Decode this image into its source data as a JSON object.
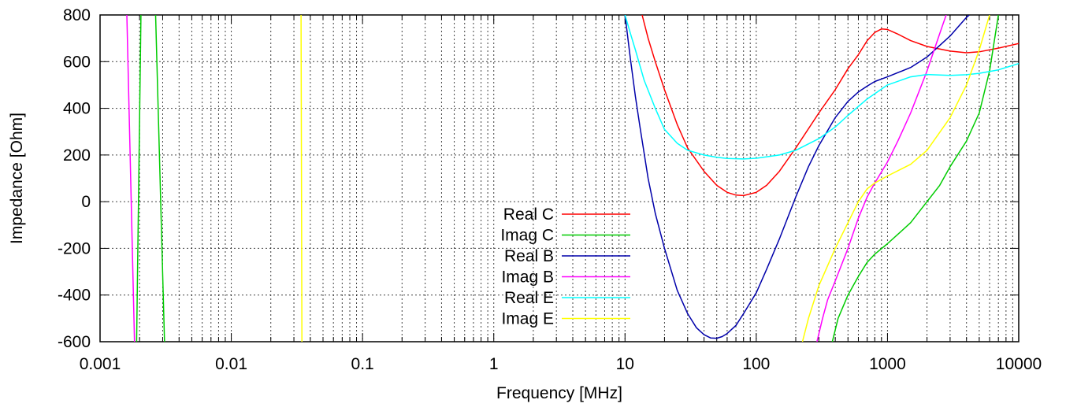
{
  "chart_data": {
    "type": "line",
    "xlabel": "Frequency [MHz]",
    "ylabel": "Impedance [Ohm]",
    "xscale": "log",
    "xlim": [
      0.001,
      10000
    ],
    "ylim": [
      -600,
      800
    ],
    "grid": true,
    "legend_position": "center",
    "x_ticks": [
      {
        "value": 0.001,
        "label": "0.001"
      },
      {
        "value": 0.01,
        "label": "0.01"
      },
      {
        "value": 0.1,
        "label": "0.1"
      },
      {
        "value": 1,
        "label": "1"
      },
      {
        "value": 10,
        "label": "10"
      },
      {
        "value": 100,
        "label": "100"
      },
      {
        "value": 1000,
        "label": "1000"
      },
      {
        "value": 10000,
        "label": "10000"
      }
    ],
    "y_ticks": [
      {
        "value": 800,
        "label": "800"
      },
      {
        "value": 600,
        "label": "600"
      },
      {
        "value": 400,
        "label": "400"
      },
      {
        "value": 200,
        "label": "200"
      },
      {
        "value": 0,
        "label": "0"
      },
      {
        "value": -200,
        "label": "-200"
      },
      {
        "value": -400,
        "label": "-400"
      },
      {
        "value": -600,
        "label": "-600"
      }
    ],
    "series": [
      {
        "name": "Real C",
        "color": "#ff0000",
        "points": [
          [
            13.5,
            800
          ],
          [
            15,
            700
          ],
          [
            17,
            600
          ],
          [
            20,
            480
          ],
          [
            25,
            330
          ],
          [
            30,
            230
          ],
          [
            40,
            130
          ],
          [
            50,
            70
          ],
          [
            60,
            40
          ],
          [
            70,
            28
          ],
          [
            80,
            26
          ],
          [
            100,
            40
          ],
          [
            120,
            70
          ],
          [
            150,
            130
          ],
          [
            200,
            230
          ],
          [
            300,
            380
          ],
          [
            400,
            480
          ],
          [
            500,
            570
          ],
          [
            600,
            630
          ],
          [
            700,
            690
          ],
          [
            800,
            725
          ],
          [
            900,
            740
          ],
          [
            1000,
            738
          ],
          [
            1200,
            718
          ],
          [
            1500,
            690
          ],
          [
            2000,
            665
          ],
          [
            3000,
            645
          ],
          [
            4000,
            638
          ],
          [
            5000,
            642
          ],
          [
            7000,
            658
          ],
          [
            10000,
            678
          ]
        ]
      },
      {
        "name": "Imag C",
        "color": "#00cc00",
        "points": [
          [
            0.0019,
            -600
          ],
          [
            0.00205,
            800
          ],
          [
            null,
            null
          ],
          [
            0.00265,
            800
          ],
          [
            0.0031,
            -600
          ],
          [
            null,
            null
          ],
          [
            380,
            -600
          ],
          [
            420,
            -500
          ],
          [
            500,
            -400
          ],
          [
            600,
            -320
          ],
          [
            700,
            -260
          ],
          [
            800,
            -225
          ],
          [
            1000,
            -180
          ],
          [
            1200,
            -140
          ],
          [
            1500,
            -90
          ],
          [
            2000,
            0
          ],
          [
            2500,
            70
          ],
          [
            3000,
            150
          ],
          [
            4000,
            260
          ],
          [
            5000,
            380
          ],
          [
            6000,
            560
          ],
          [
            7000,
            800
          ]
        ]
      },
      {
        "name": "Real B",
        "color": "#0000aa",
        "points": [
          [
            10,
            800
          ],
          [
            11,
            610
          ],
          [
            12,
            450
          ],
          [
            13,
            320
          ],
          [
            15,
            100
          ],
          [
            17,
            -50
          ],
          [
            20,
            -200
          ],
          [
            25,
            -380
          ],
          [
            30,
            -480
          ],
          [
            35,
            -540
          ],
          [
            40,
            -570
          ],
          [
            45,
            -584
          ],
          [
            50,
            -585
          ],
          [
            55,
            -578
          ],
          [
            60,
            -565
          ],
          [
            70,
            -530
          ],
          [
            80,
            -480
          ],
          [
            100,
            -390
          ],
          [
            120,
            -290
          ],
          [
            150,
            -160
          ],
          [
            200,
            20
          ],
          [
            250,
            150
          ],
          [
            300,
            240
          ],
          [
            400,
            360
          ],
          [
            500,
            430
          ],
          [
            600,
            470
          ],
          [
            700,
            495
          ],
          [
            800,
            515
          ],
          [
            1000,
            535
          ],
          [
            1500,
            575
          ],
          [
            2000,
            620
          ],
          [
            3000,
            710
          ],
          [
            4000,
            790
          ],
          [
            4200,
            800
          ]
        ]
      },
      {
        "name": "Imag B",
        "color": "#ff00ff",
        "points": [
          [
            0.0016,
            800
          ],
          [
            0.00183,
            -600
          ],
          [
            null,
            null
          ],
          [
            290,
            -600
          ],
          [
            320,
            -500
          ],
          [
            350,
            -420
          ],
          [
            400,
            -340
          ],
          [
            500,
            -200
          ],
          [
            600,
            -70
          ],
          [
            700,
            20
          ],
          [
            800,
            80
          ],
          [
            1000,
            170
          ],
          [
            1200,
            260
          ],
          [
            1500,
            380
          ],
          [
            2000,
            560
          ],
          [
            2500,
            720
          ],
          [
            2800,
            800
          ]
        ]
      },
      {
        "name": "Real E",
        "color": "#00ffff",
        "points": [
          [
            10,
            800
          ],
          [
            11,
            720
          ],
          [
            12,
            650
          ],
          [
            14,
            520
          ],
          [
            17,
            400
          ],
          [
            20,
            310
          ],
          [
            25,
            250
          ],
          [
            30,
            220
          ],
          [
            40,
            200
          ],
          [
            50,
            190
          ],
          [
            60,
            185
          ],
          [
            80,
            183
          ],
          [
            100,
            186
          ],
          [
            150,
            200
          ],
          [
            200,
            220
          ],
          [
            300,
            270
          ],
          [
            400,
            320
          ],
          [
            500,
            370
          ],
          [
            700,
            440
          ],
          [
            1000,
            500
          ],
          [
            1500,
            535
          ],
          [
            2000,
            545
          ],
          [
            2500,
            543
          ],
          [
            3000,
            541
          ],
          [
            4000,
            544
          ],
          [
            5000,
            550
          ],
          [
            7000,
            565
          ],
          [
            10000,
            592
          ]
        ]
      },
      {
        "name": "Imag E",
        "color": "#ffff00",
        "points": [
          [
            0.034,
            800
          ],
          [
            0.0345,
            -600
          ],
          [
            null,
            null
          ],
          [
            225,
            -600
          ],
          [
            250,
            -500
          ],
          [
            300,
            -360
          ],
          [
            400,
            -200
          ],
          [
            500,
            -90
          ],
          [
            600,
            0
          ],
          [
            700,
            55
          ],
          [
            800,
            80
          ],
          [
            1000,
            110
          ],
          [
            1500,
            160
          ],
          [
            2000,
            220
          ],
          [
            3000,
            360
          ],
          [
            4000,
            500
          ],
          [
            5000,
            650
          ],
          [
            6000,
            800
          ]
        ]
      }
    ]
  }
}
